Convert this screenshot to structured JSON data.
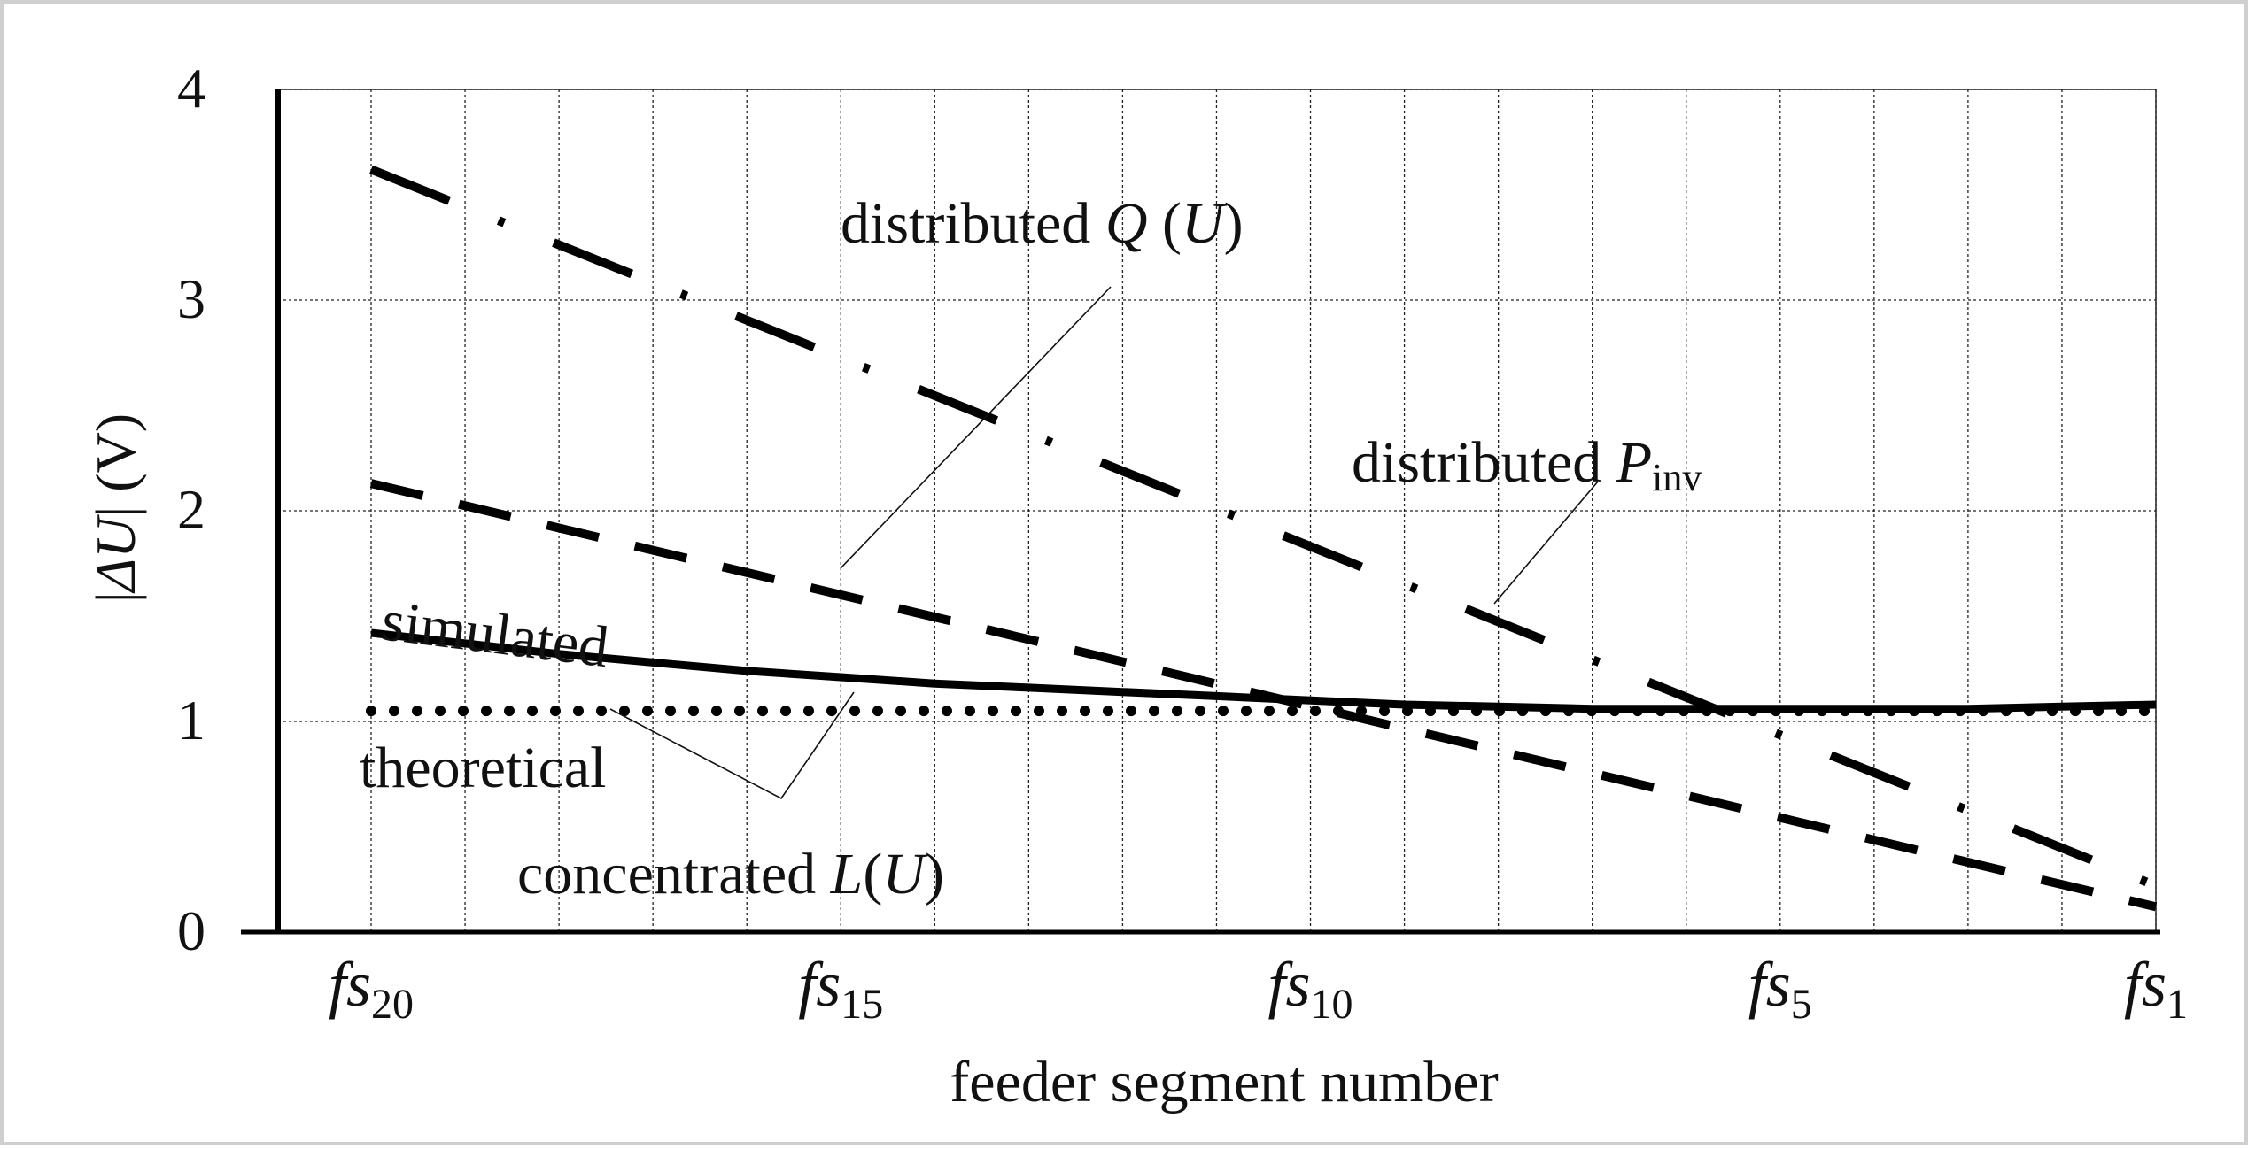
{
  "chart_data": {
    "type": "line",
    "xlabel": "feeder segment number",
    "ylabel": "|ΔU| (V)",
    "ylim": [
      0,
      4
    ],
    "y_ticks": [
      "0",
      "1",
      "2",
      "3",
      "4"
    ],
    "x_ticks": [
      {
        "segment": 20,
        "base": "fs",
        "sub": "20"
      },
      {
        "segment": 15,
        "base": "fs",
        "sub": "15"
      },
      {
        "segment": 10,
        "base": "fs",
        "sub": "10"
      },
      {
        "segment": 5,
        "base": "fs",
        "sub": "5"
      },
      {
        "segment": 1,
        "base": "fs",
        "sub": "1"
      }
    ],
    "grid": true,
    "series": [
      {
        "name": "distributed Q (U)",
        "name_parts": {
          "text": "distributed ",
          "var": "Q",
          "paren_open": " (",
          "arg": "U",
          "paren_close": ")"
        },
        "style": "dashdot",
        "x": [
          20,
          1
        ],
        "y": [
          3.62,
          0.22
        ]
      },
      {
        "name": "distributed Pinv",
        "name_parts": {
          "text": "distributed ",
          "var": "P",
          "sub": "inv"
        },
        "style": "dashed",
        "x": [
          20,
          1
        ],
        "y": [
          2.13,
          0.12
        ]
      },
      {
        "name": "simulated",
        "style": "solid",
        "x": [
          20,
          19,
          18,
          17,
          16,
          15,
          14,
          13,
          12,
          11,
          10,
          9,
          8,
          7,
          6,
          5,
          4,
          3,
          2,
          1
        ],
        "y": [
          1.42,
          1.37,
          1.32,
          1.28,
          1.24,
          1.21,
          1.18,
          1.16,
          1.14,
          1.12,
          1.1,
          1.08,
          1.07,
          1.06,
          1.06,
          1.06,
          1.06,
          1.06,
          1.07,
          1.08
        ]
      },
      {
        "name": "theoretical",
        "style": "dotted",
        "x": [
          20,
          1
        ],
        "y": [
          1.05,
          1.05
        ]
      }
    ],
    "annotation": {
      "text_parts": {
        "text": "concentrated ",
        "var": "L",
        "paren_open": "(",
        "arg": "U",
        "paren_close": ")"
      }
    }
  }
}
